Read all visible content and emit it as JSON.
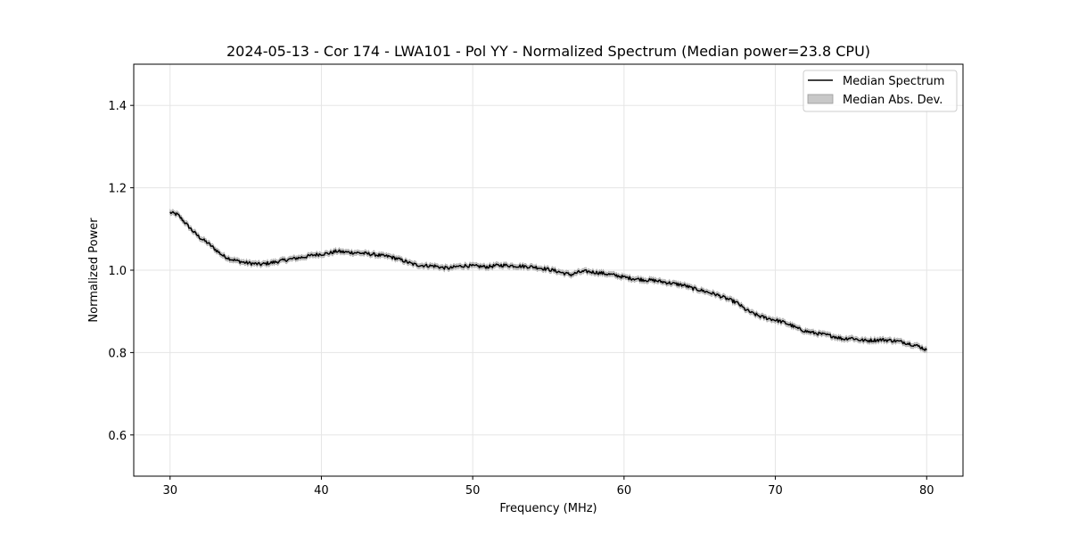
{
  "chart_data": {
    "type": "line",
    "title": "2024-05-13 - Cor 174 - LWA101 - Pol YY - Normalized Spectrum (Median power=23.8 CPU)",
    "xlabel": "Frequency (MHz)",
    "ylabel": "Normalized Power",
    "xlim": [
      27.6,
      82.4
    ],
    "ylim": [
      0.5,
      1.5
    ],
    "xticks": [
      30,
      40,
      50,
      60,
      70,
      80
    ],
    "yticks": [
      0.6,
      0.8,
      1.0,
      1.2,
      1.4
    ],
    "xtick_labels": [
      "30",
      "40",
      "50",
      "60",
      "70",
      "80"
    ],
    "ytick_labels": [
      "0.6",
      "0.8",
      "1.0",
      "1.2",
      "1.4"
    ],
    "grid": true,
    "legend_position": "top-right",
    "legend": [
      "Median Spectrum",
      "Median Abs. Dev."
    ],
    "series": [
      {
        "name": "Median Spectrum",
        "color": "#000000",
        "x": [
          30,
          30.5,
          31,
          31.5,
          32,
          32.5,
          33,
          33.5,
          34,
          34.5,
          35,
          35.5,
          36,
          36.5,
          37,
          37.5,
          38,
          38.5,
          39,
          39.5,
          40,
          40.5,
          41,
          41.5,
          42,
          42.5,
          43,
          43.5,
          44,
          44.5,
          45,
          45.5,
          46,
          46.5,
          47,
          47.5,
          48,
          48.5,
          49,
          49.5,
          50,
          50.5,
          51,
          51.5,
          52,
          52.5,
          53,
          53.5,
          54,
          54.5,
          55,
          55.5,
          56,
          56.5,
          57,
          57.5,
          58,
          58.5,
          59,
          59.5,
          60,
          60.5,
          61,
          61.5,
          62,
          62.5,
          63,
          63.5,
          64,
          64.5,
          65,
          65.5,
          66,
          66.5,
          67,
          67.5,
          68,
          68.5,
          69,
          69.5,
          70,
          70.5,
          71,
          71.5,
          72,
          72.5,
          73,
          73.5,
          74,
          74.5,
          75,
          75.5,
          76,
          76.5,
          77,
          77.5,
          78,
          78.5,
          79,
          79.5,
          80
        ],
        "y": [
          1.14,
          1.135,
          1.115,
          1.095,
          1.078,
          1.066,
          1.05,
          1.035,
          1.027,
          1.022,
          1.018,
          1.016,
          1.014,
          1.017,
          1.02,
          1.024,
          1.027,
          1.03,
          1.033,
          1.037,
          1.039,
          1.041,
          1.046,
          1.044,
          1.043,
          1.042,
          1.04,
          1.038,
          1.035,
          1.033,
          1.028,
          1.022,
          1.015,
          1.012,
          1.011,
          1.01,
          1.006,
          1.005,
          1.009,
          1.011,
          1.01,
          1.009,
          1.008,
          1.011,
          1.012,
          1.011,
          1.01,
          1.009,
          1.008,
          1.005,
          1.002,
          0.998,
          0.993,
          0.989,
          0.995,
          0.997,
          0.995,
          0.993,
          0.99,
          0.987,
          0.983,
          0.98,
          0.978,
          0.976,
          0.975,
          0.972,
          0.969,
          0.966,
          0.963,
          0.956,
          0.952,
          0.947,
          0.942,
          0.935,
          0.928,
          0.92,
          0.905,
          0.895,
          0.888,
          0.883,
          0.879,
          0.874,
          0.867,
          0.858,
          0.852,
          0.848,
          0.845,
          0.842,
          0.838,
          0.833,
          0.836,
          0.831,
          0.829,
          0.83,
          0.831,
          0.83,
          0.828,
          0.825,
          0.82,
          0.815,
          0.806
        ]
      },
      {
        "name": "Median Abs. Dev.",
        "color": "#999999",
        "half_width": 0.006
      }
    ]
  }
}
